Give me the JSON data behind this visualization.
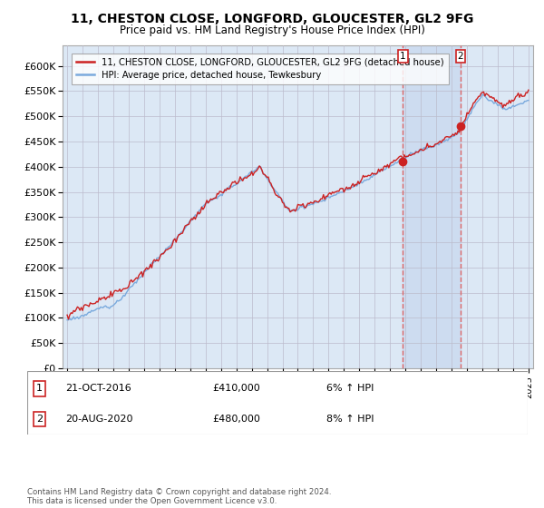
{
  "title": "11, CHESTON CLOSE, LONGFORD, GLOUCESTER, GL2 9FG",
  "subtitle": "Price paid vs. HM Land Registry's House Price Index (HPI)",
  "legend_line1": "11, CHESTON CLOSE, LONGFORD, GLOUCESTER, GL2 9FG (detached house)",
  "legend_line2": "HPI: Average price, detached house, Tewkesbury",
  "annotation1_num": "1",
  "annotation1_date": "21-OCT-2016",
  "annotation1_price": "£410,000",
  "annotation1_hpi": "6% ↑ HPI",
  "annotation2_num": "2",
  "annotation2_date": "20-AUG-2020",
  "annotation2_price": "£480,000",
  "annotation2_hpi": "8% ↑ HPI",
  "footer": "Contains HM Land Registry data © Crown copyright and database right 2024.\nThis data is licensed under the Open Government Licence v3.0.",
  "sale1_year": 2016.8,
  "sale1_value": 410000,
  "sale2_year": 2020.6,
  "sale2_value": 480000,
  "hpi_color": "#7aaadd",
  "price_color": "#cc2222",
  "sale_marker_color": "#cc2222",
  "vline_color": "#dd6666",
  "shade_color": "#c8d8ee",
  "background_color": "#dce8f5",
  "grid_color": "#bbbbcc",
  "ylim_min": 0,
  "ylim_max": 640000,
  "ytick_max": 600000,
  "ytick_step": 50000,
  "start_year": 1995,
  "end_year": 2025
}
